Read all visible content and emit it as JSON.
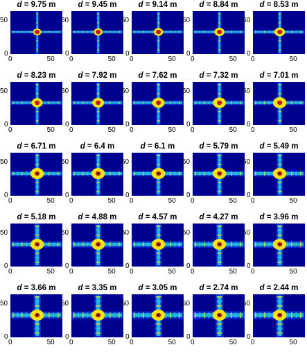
{
  "chart_data": {
    "type": "heatmap",
    "layout": "5x5 small multiples",
    "x_ticks": [
      0,
      50
    ],
    "y_ticks": [
      0,
      50
    ],
    "xlim": [
      0,
      64
    ],
    "ylim": [
      0,
      64
    ],
    "peak_location": [
      33,
      33
    ],
    "colormap": "jet",
    "title_variable": "d",
    "panels": [
      {
        "title_value": "9.75",
        "unit": "m"
      },
      {
        "title_value": "9.45",
        "unit": "m"
      },
      {
        "title_value": "9.14",
        "unit": "m"
      },
      {
        "title_value": "8.84",
        "unit": "m"
      },
      {
        "title_value": "8.53",
        "unit": "m"
      },
      {
        "title_value": "8.23",
        "unit": "m"
      },
      {
        "title_value": "7.92",
        "unit": "m"
      },
      {
        "title_value": "7.62",
        "unit": "m"
      },
      {
        "title_value": "7.32",
        "unit": "m"
      },
      {
        "title_value": "7.01",
        "unit": "m"
      },
      {
        "title_value": "6.71",
        "unit": "m"
      },
      {
        "title_value": "6.4",
        "unit": "m"
      },
      {
        "title_value": "6.1",
        "unit": "m"
      },
      {
        "title_value": "5.79",
        "unit": "m"
      },
      {
        "title_value": "5.49",
        "unit": "m"
      },
      {
        "title_value": "5.18",
        "unit": "m"
      },
      {
        "title_value": "4.88",
        "unit": "m"
      },
      {
        "title_value": "4.57",
        "unit": "m"
      },
      {
        "title_value": "4.27",
        "unit": "m"
      },
      {
        "title_value": "3.96",
        "unit": "m"
      },
      {
        "title_value": "3.66",
        "unit": "m"
      },
      {
        "title_value": "3.35",
        "unit": "m"
      },
      {
        "title_value": "3.05",
        "unit": "m"
      },
      {
        "title_value": "2.74",
        "unit": "m"
      },
      {
        "title_value": "2.44",
        "unit": "m"
      }
    ],
    "colors": {
      "background": "#00008f",
      "low": "#0a2fd6",
      "mid": "#24c8e0",
      "high": "#f2e415",
      "peak": "#c2181a"
    }
  }
}
